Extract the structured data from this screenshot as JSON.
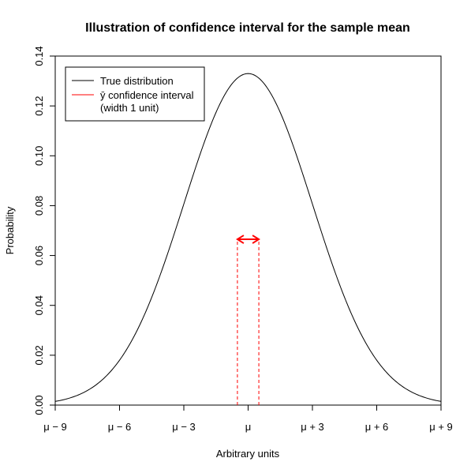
{
  "chart_data": {
    "type": "line",
    "title": "Illustration of confidence interval for the sample mean",
    "xlabel": "Arbitrary units",
    "ylabel": "Probability",
    "xlim": [
      -9,
      9
    ],
    "ylim": [
      0,
      0.14
    ],
    "x_ticks": [
      -9,
      -6,
      -3,
      0,
      3,
      6,
      9
    ],
    "x_tick_labels": [
      "μ − 9",
      "μ − 6",
      "μ − 3",
      "μ",
      "μ + 3",
      "μ + 6",
      "μ + 9"
    ],
    "y_ticks": [
      0,
      0.02,
      0.04,
      0.06,
      0.08,
      0.1,
      0.12,
      0.14
    ],
    "y_tick_labels": [
      "0.00",
      "0.02",
      "0.04",
      "0.06",
      "0.08",
      "0.10",
      "0.12",
      "0.14"
    ],
    "grid": false,
    "legend_position": "top-left",
    "series": [
      {
        "name": "True distribution",
        "color": "#000000",
        "distribution": "normal",
        "mean": 0,
        "sd": 3,
        "x": [
          -9,
          -8,
          -7,
          -6,
          -5,
          -4,
          -3,
          -2,
          -1,
          0,
          1,
          2,
          3,
          4,
          5,
          6,
          7,
          8,
          9
        ],
        "y": [
          0.0015,
          0.0037,
          0.0087,
          0.018,
          0.0332,
          0.0547,
          0.0807,
          0.1065,
          0.1258,
          0.133,
          0.1258,
          0.1065,
          0.0807,
          0.0547,
          0.0332,
          0.018,
          0.0087,
          0.0037,
          0.0015
        ]
      }
    ],
    "confidence_interval": {
      "legend_label": "ȳ confidence interval",
      "legend_label_line2": "(width 1 unit)",
      "color": "#ff0000",
      "lower": -0.5,
      "upper": 0.5,
      "arrow_y": 0.0665,
      "style": "dashed"
    }
  }
}
